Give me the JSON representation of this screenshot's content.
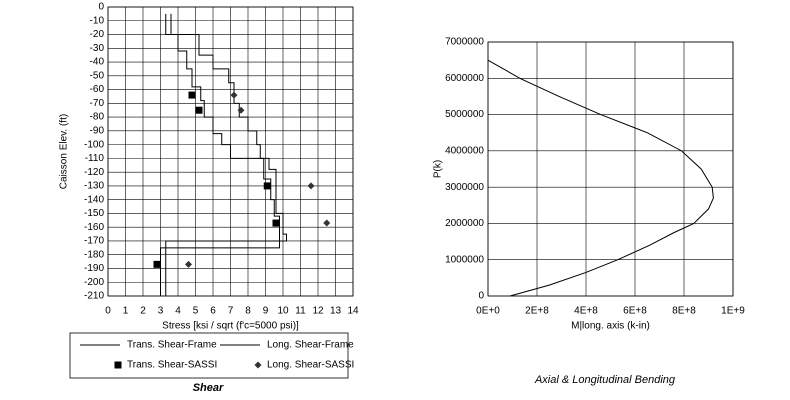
{
  "chart_data": [
    {
      "type": "line",
      "title": "Shear",
      "x_label": "Stress [ksi / sqrt (f'c=5000 psi)]",
      "y_label": "Caisson Elev. (ft)",
      "xlim": [
        0,
        14
      ],
      "xticks": [
        0,
        1,
        2,
        3,
        4,
        5,
        6,
        7,
        8,
        9,
        10,
        11,
        12,
        13,
        14
      ],
      "ylim": [
        -210,
        0
      ],
      "yticks": [
        0,
        -10,
        -20,
        -30,
        -40,
        -50,
        -60,
        -70,
        -80,
        -90,
        -100,
        -110,
        -120,
        -130,
        -140,
        -150,
        -160,
        -170,
        -180,
        -190,
        -200,
        -210
      ],
      "grid": true,
      "legend": "bottom",
      "series": [
        {
          "name": "Trans. Shear-Frame",
          "color": "#000000",
          "marker": "none",
          "x": [
            3.3,
            3.3,
            4.0,
            4.0,
            4.5,
            4.5,
            4.8,
            4.8,
            5.3,
            5.3,
            5.5,
            5.5,
            6.0,
            6.0,
            6.5,
            6.5,
            7.0,
            7.0,
            8.9,
            8.9,
            9.3,
            9.3,
            9.5,
            9.5,
            9.8,
            9.8,
            3.0,
            3.0
          ],
          "values": [
            -5,
            -20,
            -20,
            -32,
            -32,
            -45,
            -45,
            -58,
            -58,
            -68,
            -68,
            -80,
            -80,
            -92,
            -92,
            -100,
            -100,
            -110,
            -110,
            -125,
            -125,
            -140,
            -140,
            -152,
            -152,
            -175,
            -175,
            -210
          ]
        },
        {
          "name": "Long. Shear-Frame",
          "color": "#000000",
          "marker": "none",
          "x": [
            3.6,
            3.6,
            5.2,
            5.2,
            6.0,
            6.0,
            6.9,
            6.9,
            7.2,
            7.2,
            7.5,
            7.5,
            8.0,
            8.0,
            8.5,
            8.5,
            8.7,
            8.7,
            9.2,
            9.2,
            9.6,
            9.6,
            10.0,
            10.0,
            10.2,
            10.2,
            3.3,
            3.3
          ],
          "values": [
            -5,
            -20,
            -20,
            -35,
            -35,
            -45,
            -45,
            -55,
            -55,
            -70,
            -70,
            -80,
            -80,
            -90,
            -90,
            -100,
            -100,
            -110,
            -110,
            -118,
            -118,
            -150,
            -150,
            -165,
            -165,
            -170,
            -170,
            -210
          ]
        },
        {
          "name": "Trans. Shear-SASSI",
          "color": "#000000",
          "marker": "square",
          "x": [
            4.8,
            5.2,
            9.1,
            9.6,
            2.8
          ],
          "values": [
            -64,
            -75,
            -130,
            -157,
            -187
          ]
        },
        {
          "name": "Long. Shear-SASSI",
          "color": "#333333",
          "marker": "diamond",
          "x": [
            7.2,
            7.6,
            11.6,
            12.5,
            4.6
          ],
          "values": [
            -64,
            -75,
            -130,
            -157,
            -187
          ]
        }
      ]
    },
    {
      "type": "line",
      "title": "Axial & Longitudinal Bending",
      "x_label": "M|long. axis (k-in)",
      "y_label": "P(k)",
      "xlim": [
        0,
        1000000000
      ],
      "xticks": [
        {
          "value": 0,
          "label": "0E+0"
        },
        {
          "value": 200000000,
          "label": "2E+8"
        },
        {
          "value": 400000000,
          "label": "4E+8"
        },
        {
          "value": 600000000,
          "label": "6E+8"
        },
        {
          "value": 800000000,
          "label": "8E+8"
        },
        {
          "value": 1000000000,
          "label": "1E+9"
        }
      ],
      "ylim": [
        0,
        7000000
      ],
      "yticks": [
        0,
        1000000,
        2000000,
        3000000,
        4000000,
        5000000,
        6000000,
        7000000
      ],
      "grid": true,
      "series": [
        {
          "color": "#000000",
          "marker": "none",
          "x": [
            90000000,
            250000000,
            400000000,
            530000000,
            660000000,
            760000000,
            840000000,
            900000000,
            920000000,
            915000000,
            870000000,
            790000000,
            650000000,
            460000000,
            290000000,
            130000000,
            0
          ],
          "values": [
            0,
            300000,
            650000,
            1000000,
            1400000,
            1750000,
            2000000,
            2400000,
            2700000,
            3000000,
            3500000,
            4000000,
            4500000,
            5000000,
            5500000,
            6000000,
            6500000
          ]
        }
      ]
    }
  ]
}
